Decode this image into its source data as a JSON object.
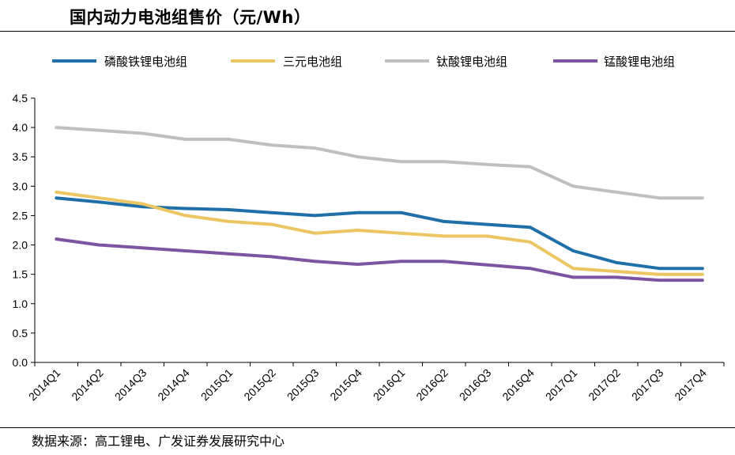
{
  "title": "国内动力电池组售价（元/Wh）",
  "source": "数据来源：高工锂电、广发证券发展研究中心",
  "chart_data": {
    "type": "line",
    "title": "国内动力电池组售价（元/Wh）",
    "xlabel": "",
    "ylabel": "",
    "ylim": [
      0,
      4.5
    ],
    "yticks": [
      "0.0",
      "0.5",
      "1.0",
      "1.5",
      "2.0",
      "2.5",
      "3.0",
      "3.5",
      "4.0",
      "4.5"
    ],
    "legend_position": "top",
    "grid": false,
    "categories": [
      "2014Q1",
      "2014Q2",
      "2014Q3",
      "2014Q4",
      "2015Q1",
      "2015Q2",
      "2015Q3",
      "2015Q4",
      "2016Q1",
      "2016Q2",
      "2016Q3",
      "2016Q4",
      "2017Q1",
      "2017Q2",
      "2017Q3",
      "2017Q4"
    ],
    "series": [
      {
        "name": "磷酸铁锂电池组",
        "color": "#1f6fa9",
        "values": [
          2.8,
          2.73,
          2.65,
          2.62,
          2.6,
          2.55,
          2.5,
          2.55,
          2.55,
          2.4,
          2.35,
          2.3,
          1.9,
          1.7,
          1.6,
          1.6
        ]
      },
      {
        "name": "三元电池组",
        "color": "#ecc662",
        "values": [
          2.9,
          2.8,
          2.7,
          2.5,
          2.4,
          2.35,
          2.2,
          2.25,
          2.2,
          2.15,
          2.15,
          2.05,
          1.6,
          1.55,
          1.5,
          1.5
        ]
      },
      {
        "name": "钛酸锂电池组",
        "color": "#bfbfbf",
        "values": [
          4.0,
          3.95,
          3.9,
          3.8,
          3.8,
          3.7,
          3.65,
          3.5,
          3.42,
          3.42,
          3.37,
          3.33,
          3.0,
          2.9,
          2.8,
          2.8
        ]
      },
      {
        "name": "锰酸锂电池组",
        "color": "#7b55a1",
        "values": [
          2.1,
          2.0,
          1.95,
          1.9,
          1.85,
          1.8,
          1.72,
          1.67,
          1.72,
          1.72,
          1.66,
          1.6,
          1.45,
          1.45,
          1.4,
          1.4
        ]
      }
    ]
  }
}
